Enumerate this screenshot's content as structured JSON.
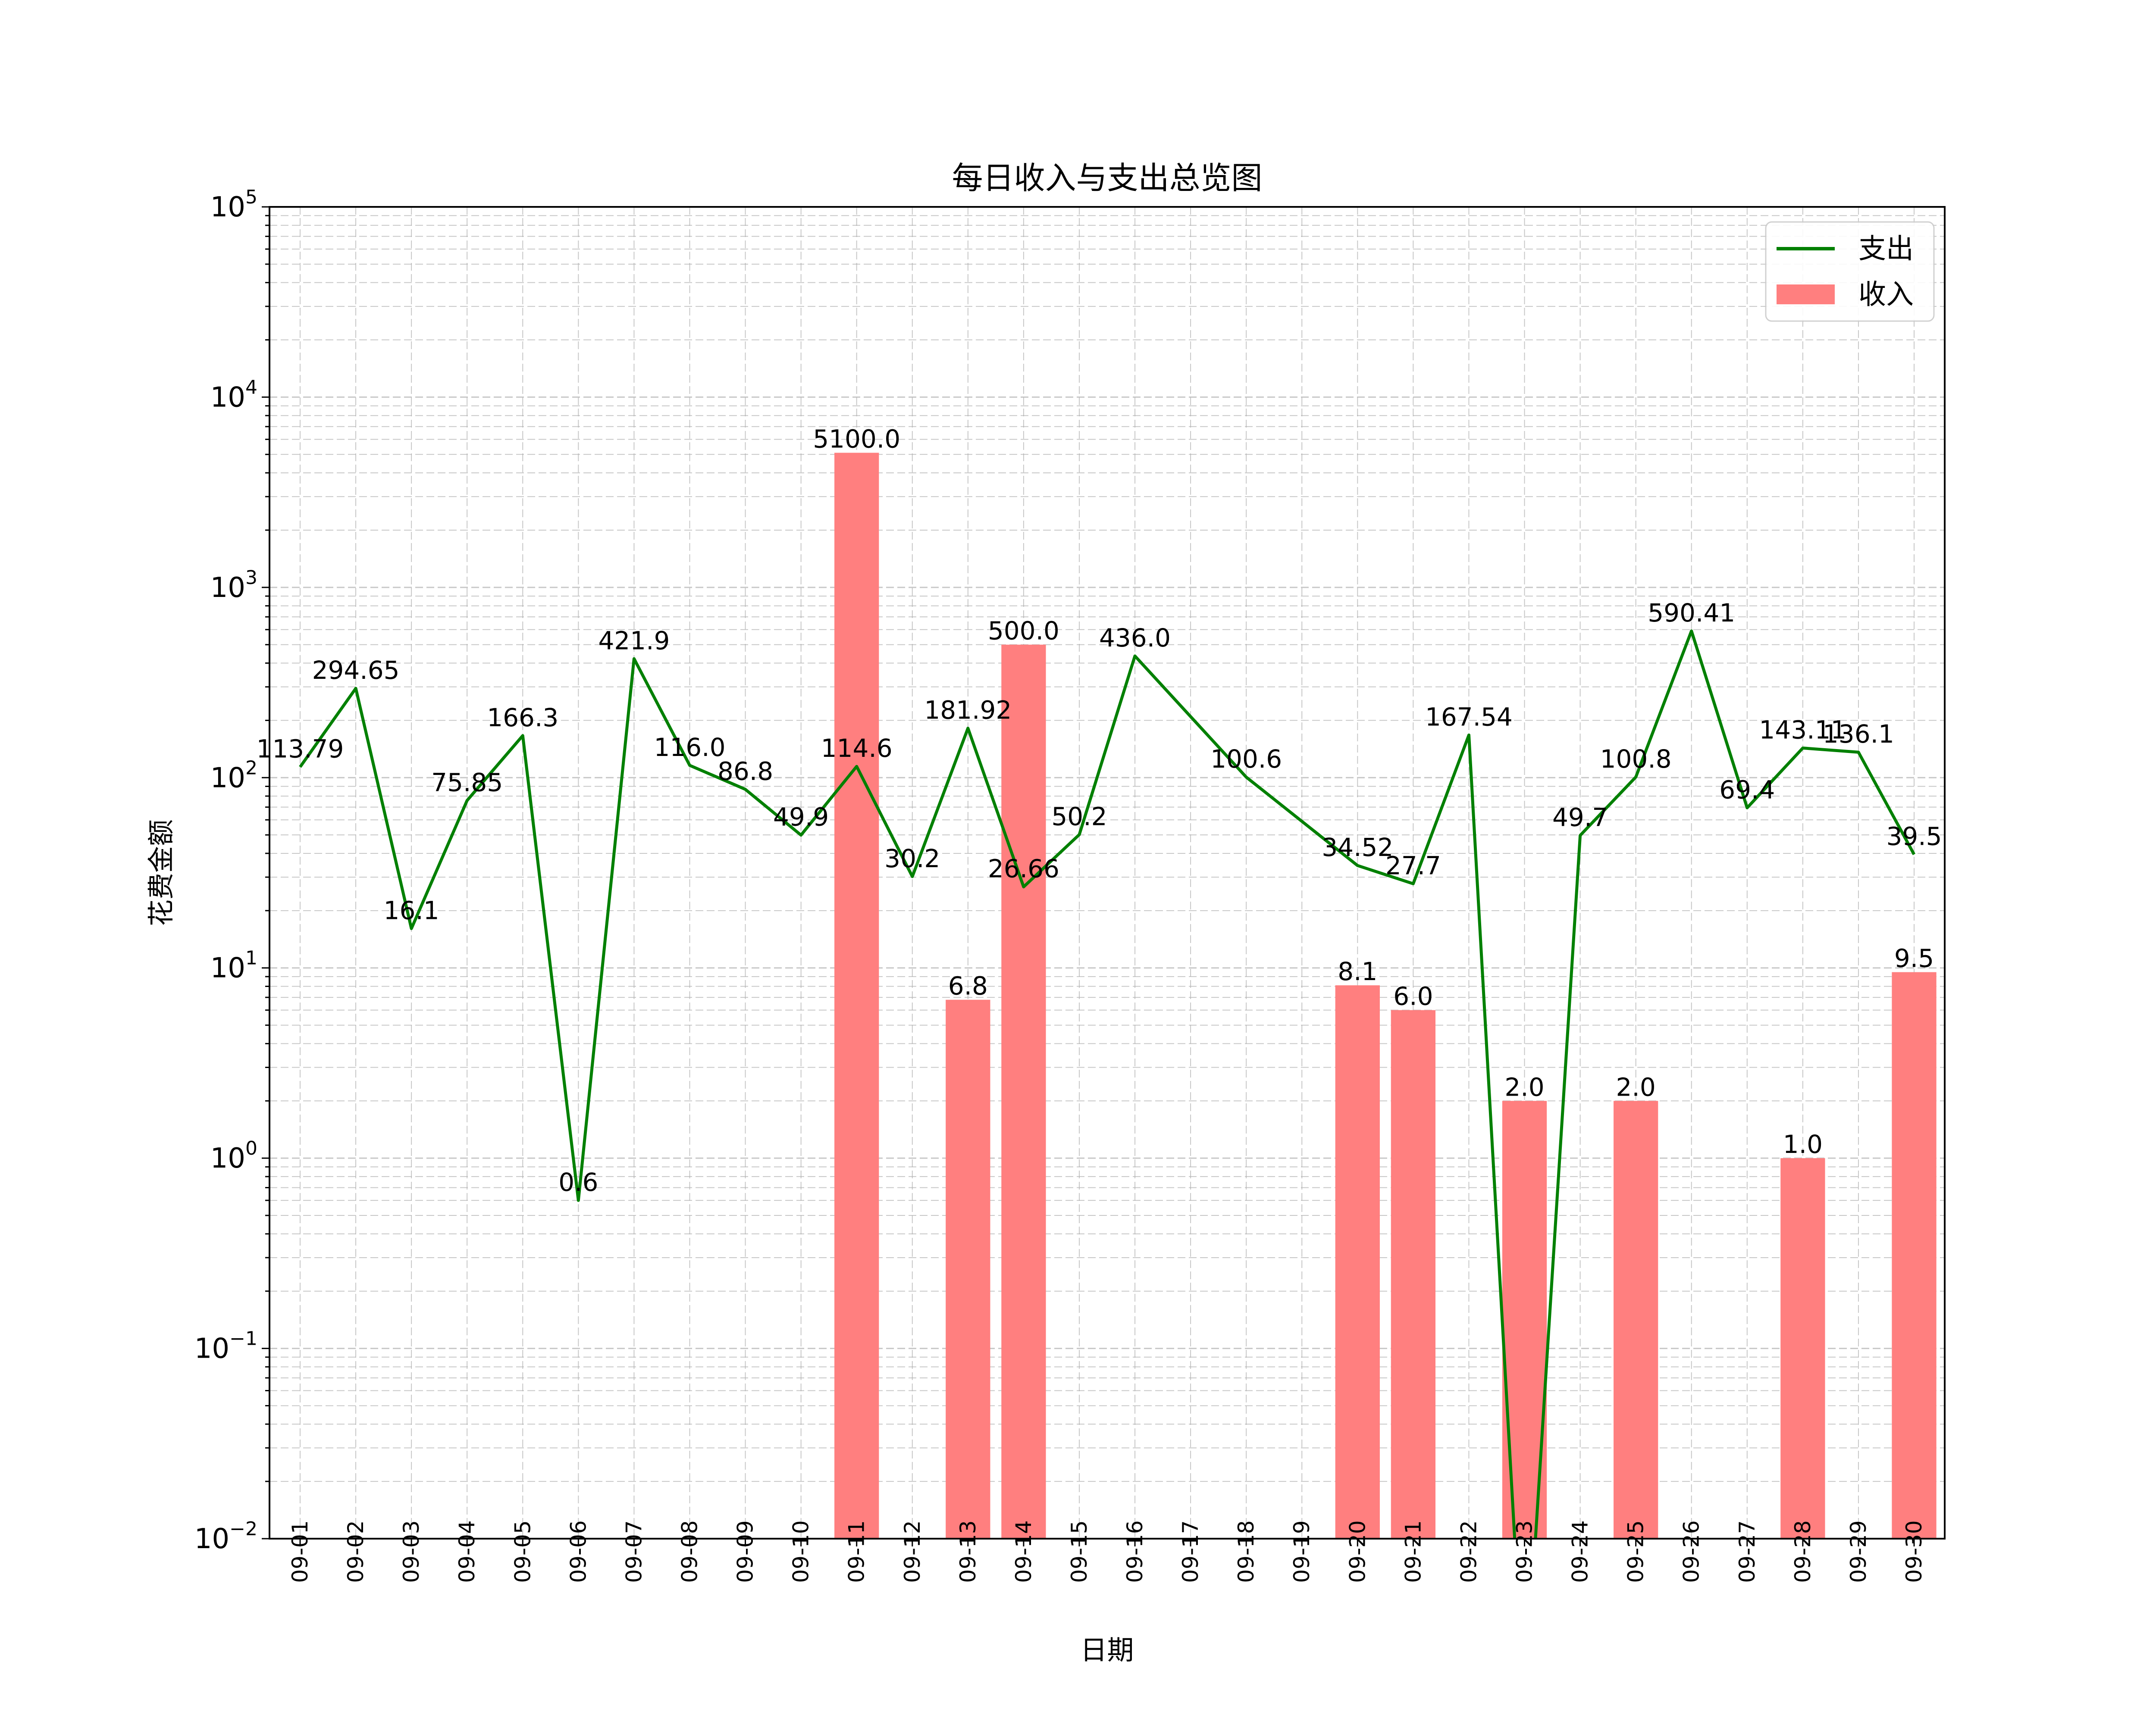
{
  "chart_data": {
    "type": "bar",
    "title": "每日收入与支出总览图",
    "xlabel": "日期",
    "ylabel": "花费金额",
    "yscale": "log",
    "ylim": [
      0.01,
      100000
    ],
    "yticks": [
      {
        "base": "10",
        "exp": "−2"
      },
      {
        "base": "10",
        "exp": "−1"
      },
      {
        "base": "10",
        "exp": "0"
      },
      {
        "base": "10",
        "exp": "1"
      },
      {
        "base": "10",
        "exp": "2"
      },
      {
        "base": "10",
        "exp": "3"
      },
      {
        "base": "10",
        "exp": "4"
      },
      {
        "base": "10",
        "exp": "5"
      }
    ],
    "grid": true,
    "legend": "top-right",
    "categories": [
      "09-01",
      "09-02",
      "09-03",
      "09-04",
      "09-05",
      "09-06",
      "09-07",
      "09-08",
      "09-09",
      "09-10",
      "09-11",
      "09-12",
      "09-13",
      "09-14",
      "09-15",
      "09-16",
      "09-17",
      "09-18",
      "09-19",
      "09-20",
      "09-21",
      "09-22",
      "09-23",
      "09-24",
      "09-25",
      "09-26",
      "09-27",
      "09-28",
      "09-29",
      "09-30"
    ],
    "series": [
      {
        "name": "支出",
        "type": "line",
        "color": "#008000",
        "values": [
          113.79,
          294.65,
          16.1,
          75.85,
          166.3,
          0.6,
          421.9,
          116.0,
          86.8,
          49.9,
          114.6,
          30.2,
          181.92,
          26.66,
          50.2,
          436.0,
          null,
          100.6,
          null,
          34.52,
          27.7,
          167.54,
          0,
          49.7,
          100.8,
          590.41,
          69.4,
          143.11,
          136.1,
          39.5
        ],
        "labels": [
          "113.79",
          "294.65",
          "16.1",
          "75.85",
          "166.3",
          "0.6",
          "421.9",
          "116.0",
          "86.8",
          "49.9",
          "114.6",
          "30.2",
          "181.92",
          "26.66",
          "50.2",
          "436.0",
          "",
          "100.6",
          "",
          "34.52",
          "27.7",
          "167.54",
          "",
          "49.7",
          "100.8",
          "590.41",
          "69.4",
          "143.11",
          "136.1",
          "39.5"
        ]
      },
      {
        "name": "收入",
        "type": "bar",
        "color": "#ff7f7f",
        "values": [
          null,
          null,
          null,
          null,
          null,
          null,
          null,
          null,
          null,
          null,
          5100.0,
          null,
          6.8,
          500.0,
          null,
          null,
          null,
          null,
          null,
          8.1,
          6.0,
          null,
          2.0,
          null,
          2.0,
          null,
          null,
          1.0,
          null,
          9.5
        ],
        "labels": [
          "",
          "",
          "",
          "",
          "",
          "",
          "",
          "",
          "",
          "",
          "5100.0",
          "",
          "6.8",
          "500.0",
          "",
          "",
          "",
          "",
          "",
          "8.1",
          "6.0",
          "",
          "2.0",
          "",
          "2.0",
          "",
          "",
          "1.0",
          "",
          "9.5"
        ]
      }
    ]
  }
}
